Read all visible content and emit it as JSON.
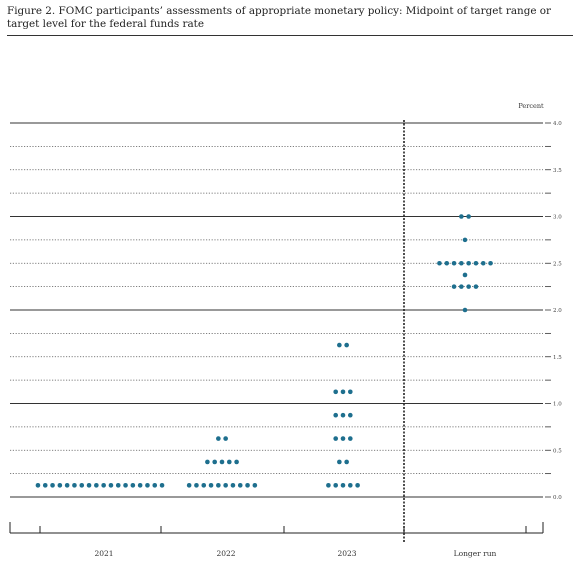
{
  "figure": {
    "title": "Figure 2.  FOMC participants’ assessments of appropriate monetary policy:  Midpoint of target range or target level for the federal funds rate"
  },
  "chart_data": {
    "type": "scatter",
    "title": "Figure 2.  FOMC participants’ assessments of appropriate monetary policy:  Midpoint of target range or target level for the federal funds rate",
    "ylabel": "Percent",
    "ylim": [
      -0.375,
      4.0
    ],
    "yticks": [
      4.0,
      3.5,
      3.0,
      2.5,
      2.0,
      1.5,
      1.0,
      0.5,
      0.0
    ],
    "ytick_labels": [
      "4.0",
      "3.5",
      "3.0",
      "2.5",
      "2.0",
      "1.5",
      "1.0",
      "0.5",
      "0.0"
    ],
    "categories": [
      "2021",
      "2022",
      "2023",
      "Longer run"
    ],
    "grid": true,
    "legend": "none",
    "dot_color": "#1e6f8e",
    "points": [
      {
        "category": "2021",
        "rate": 0.125,
        "count": 18
      },
      {
        "category": "2022",
        "rate": 0.125,
        "count": 10
      },
      {
        "category": "2022",
        "rate": 0.375,
        "count": 5
      },
      {
        "category": "2022",
        "rate": 0.625,
        "count": 2
      },
      {
        "category": "2023",
        "rate": 0.125,
        "count": 5
      },
      {
        "category": "2023",
        "rate": 0.375,
        "count": 2
      },
      {
        "category": "2023",
        "rate": 0.625,
        "count": 3
      },
      {
        "category": "2023",
        "rate": 0.875,
        "count": 3
      },
      {
        "category": "2023",
        "rate": 1.125,
        "count": 3
      },
      {
        "category": "2023",
        "rate": 1.625,
        "count": 2
      },
      {
        "category": "Longer run",
        "rate": 2.0,
        "count": 1
      },
      {
        "category": "Longer run",
        "rate": 2.25,
        "count": 4
      },
      {
        "category": "Longer run",
        "rate": 2.375,
        "count": 1
      },
      {
        "category": "Longer run",
        "rate": 2.5,
        "count": 8
      },
      {
        "category": "Longer run",
        "rate": 2.75,
        "count": 1
      },
      {
        "category": "Longer run",
        "rate": 3.0,
        "count": 2
      }
    ]
  }
}
